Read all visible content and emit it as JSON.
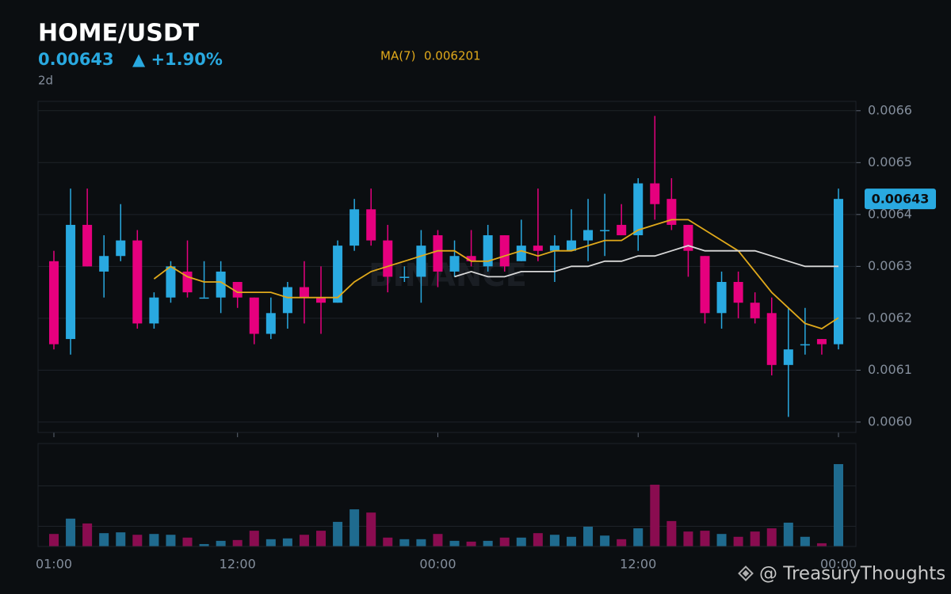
{
  "chart_data": {
    "type": "candlestick",
    "title": "HOME/USDT",
    "last_price": 0.00643,
    "change_label": "▲ +1.90%",
    "period": "2d",
    "watermark": "BINANCE",
    "footer": "@ TreasuryThoughts",
    "up_color": "#29a9e0",
    "down_color": "#e6007e",
    "volume_up_color": "#1f6b8f",
    "volume_down_color": "#8a0c50",
    "categories": [
      "01:00",
      null,
      null,
      null,
      null,
      null,
      null,
      null,
      null,
      null,
      null,
      "12:00",
      null,
      null,
      null,
      null,
      null,
      null,
      null,
      null,
      null,
      null,
      null,
      "00:00",
      null,
      null,
      null,
      null,
      null,
      null,
      null,
      null,
      null,
      null,
      null,
      "12:00",
      null,
      null,
      null,
      null,
      null,
      null,
      null,
      null,
      null,
      null,
      null,
      "00:00"
    ],
    "open": [
      0.00631,
      0.00616,
      0.00638,
      0.00629,
      0.00632,
      0.00635,
      0.00619,
      0.00624,
      0.00629,
      0.00624,
      0.00624,
      0.00627,
      0.00624,
      0.00617,
      0.00621,
      0.00626,
      0.00624,
      0.00623,
      0.00634,
      0.00641,
      0.00635,
      0.00628,
      0.00628,
      0.00636,
      0.00629,
      0.00632,
      0.0063,
      0.00636,
      0.00631,
      0.00634,
      0.00633,
      0.00633,
      0.00635,
      0.00637,
      0.00638,
      0.00636,
      0.00646,
      0.00643,
      0.00638,
      0.00632,
      0.00621,
      0.00627,
      0.00623,
      0.00621,
      0.00611,
      0.00615,
      0.00616,
      0.00615
    ],
    "high": [
      0.00633,
      0.00645,
      0.00645,
      0.00636,
      0.00642,
      0.00637,
      0.00625,
      0.00631,
      0.00635,
      0.00631,
      0.00631,
      0.00627,
      0.00624,
      0.00624,
      0.00627,
      0.00631,
      0.0063,
      0.00635,
      0.00643,
      0.00645,
      0.00638,
      0.0063,
      0.00637,
      0.00637,
      0.00635,
      0.00637,
      0.00638,
      0.00636,
      0.00639,
      0.00645,
      0.00636,
      0.00641,
      0.00643,
      0.00644,
      0.00642,
      0.00647,
      0.00659,
      0.00647,
      0.00638,
      0.00632,
      0.00629,
      0.00629,
      0.00625,
      0.00624,
      0.00622,
      0.00622,
      0.00616,
      0.00645
    ],
    "low": [
      0.00614,
      0.00613,
      0.0063,
      0.00624,
      0.00631,
      0.00618,
      0.00618,
      0.00623,
      0.00624,
      0.00624,
      0.00621,
      0.00622,
      0.00615,
      0.00616,
      0.00618,
      0.00619,
      0.00617,
      0.00623,
      0.00633,
      0.00634,
      0.00625,
      0.00627,
      0.00623,
      0.00626,
      0.00628,
      0.0063,
      0.00629,
      0.00629,
      0.00631,
      0.00631,
      0.00627,
      0.00633,
      0.00631,
      0.00632,
      0.00636,
      0.00633,
      0.00639,
      0.00637,
      0.00628,
      0.00619,
      0.00618,
      0.0062,
      0.00619,
      0.00609,
      0.00601,
      0.00613,
      0.00613,
      0.00614
    ],
    "close": [
      0.00615,
      0.00638,
      0.0063,
      0.00632,
      0.00635,
      0.00619,
      0.00624,
      0.0063,
      0.00625,
      0.00624,
      0.00629,
      0.00624,
      0.00617,
      0.00621,
      0.00626,
      0.00624,
      0.00623,
      0.00634,
      0.00641,
      0.00635,
      0.00628,
      0.00628,
      0.00634,
      0.00629,
      0.00632,
      0.00631,
      0.00636,
      0.0063,
      0.00634,
      0.00633,
      0.00634,
      0.00635,
      0.00637,
      0.00637,
      0.00636,
      0.00646,
      0.00642,
      0.00638,
      0.00633,
      0.00621,
      0.00627,
      0.00623,
      0.0062,
      0.00611,
      0.00614,
      0.00615,
      0.00615,
      0.00643
    ],
    "series": [
      {
        "name": "MA(7)",
        "color": "#e0a91b",
        "values": [
          null,
          null,
          null,
          null,
          null,
          null,
          0.006276,
          0.0063,
          0.00628,
          0.00627,
          0.00627,
          0.00625,
          0.00625,
          0.00625,
          0.00624,
          0.00624,
          0.00624,
          0.00624,
          0.00627,
          0.00629,
          0.0063,
          0.00631,
          0.00632,
          0.00633,
          0.00633,
          0.00631,
          0.00631,
          0.00632,
          0.00633,
          0.00632,
          0.00633,
          0.00633,
          0.00634,
          0.00635,
          0.00635,
          0.00637,
          0.00638,
          0.00639,
          0.00639,
          0.00637,
          0.00635,
          0.00633,
          0.00629,
          0.00625,
          0.00622,
          0.00619,
          0.00618,
          0.006201
        ]
      },
      {
        "color": "#d9d9d9",
        "values": [
          null,
          null,
          null,
          null,
          null,
          null,
          null,
          null,
          null,
          null,
          null,
          null,
          null,
          null,
          null,
          null,
          null,
          null,
          null,
          null,
          null,
          null,
          null,
          null,
          0.00628,
          0.00629,
          0.00628,
          0.00628,
          0.00629,
          0.00629,
          0.00629,
          0.0063,
          0.0063,
          0.00631,
          0.00631,
          0.00632,
          0.00632,
          0.00633,
          0.00634,
          0.00633,
          0.00633,
          0.00633,
          0.00633,
          0.00632,
          0.00631,
          0.0063,
          0.0063,
          0.0063
        ]
      }
    ],
    "volume": [
      0.31,
      0.69,
      0.57,
      0.33,
      0.35,
      0.29,
      0.31,
      0.29,
      0.22,
      0.06,
      0.14,
      0.16,
      0.39,
      0.18,
      0.2,
      0.29,
      0.39,
      0.61,
      0.92,
      0.84,
      0.22,
      0.18,
      0.18,
      0.31,
      0.14,
      0.12,
      0.14,
      0.22,
      0.22,
      0.33,
      0.29,
      0.24,
      0.49,
      0.27,
      0.18,
      0.45,
      1.53,
      0.63,
      0.37,
      0.39,
      0.31,
      0.24,
      0.37,
      0.45,
      0.59,
      0.24,
      0.08,
      2.04
    ],
    "volume_ylim": [
      0,
      2.55
    ],
    "volume_grid": [
      0.5,
      1.5
    ],
    "ylim": [
      0.00598,
      0.006618
    ],
    "yticks": [
      {
        "value": 0.006,
        "label": "0.0060"
      },
      0.0061,
      0.0062,
      0.0063,
      0.0064,
      0.0065,
      0.0066
    ],
    "grid": true
  }
}
